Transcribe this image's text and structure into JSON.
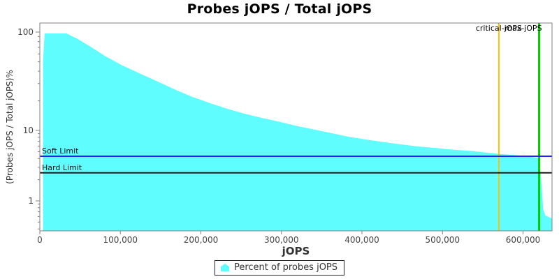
{
  "chart_data": {
    "type": "area",
    "title": "Probes jOPS / Total jOPS",
    "xlabel": "jOPS",
    "ylabel": "(Probes jOPS / Total jOPS)%",
    "x_ticks": [
      0,
      100000,
      200000,
      300000,
      400000,
      500000,
      600000
    ],
    "y_ticks": [
      100,
      10,
      1
    ],
    "y_scale": "log",
    "xlim": [
      0,
      636000
    ],
    "ylim": [
      0.4,
      120
    ],
    "grid": "off",
    "series": [
      {
        "name": "Percent of probes jOPS",
        "color": "#5FFDFD",
        "points": [
          [
            4000,
            50
          ],
          [
            6000,
            97
          ],
          [
            33000,
            97
          ],
          [
            46000,
            86
          ],
          [
            63000,
            71
          ],
          [
            81000,
            57
          ],
          [
            102000,
            46
          ],
          [
            124000,
            38
          ],
          [
            146000,
            31.5
          ],
          [
            168000,
            26
          ],
          [
            189000,
            22
          ],
          [
            211000,
            19
          ],
          [
            233000,
            16.6
          ],
          [
            254000,
            14.8
          ],
          [
            276000,
            13.4
          ],
          [
            298000,
            12.2
          ],
          [
            319000,
            11.1
          ],
          [
            341000,
            10.2
          ],
          [
            363000,
            9.1
          ],
          [
            384000,
            8.1
          ],
          [
            406000,
            7.4
          ],
          [
            428000,
            6.8
          ],
          [
            450000,
            6.3
          ],
          [
            471000,
            5.9
          ],
          [
            493000,
            5.6
          ],
          [
            515000,
            5.3
          ],
          [
            536000,
            5.1
          ],
          [
            558000,
            4.8
          ],
          [
            575000,
            4.6
          ],
          [
            597000,
            4.4
          ],
          [
            620000,
            4.05
          ],
          [
            622000,
            2.4
          ],
          [
            624000,
            1.2
          ],
          [
            625000,
            0.76
          ],
          [
            628000,
            0.62
          ],
          [
            636000,
            0.56
          ]
        ]
      }
    ],
    "reference_lines": [
      {
        "id": "soft_limit",
        "label": "Soft Limit",
        "value": 4.3,
        "color": "#2222EE"
      },
      {
        "id": "hard_limit",
        "label": "Hard Limit",
        "value": 2.5,
        "color": "#1A1A1A"
      }
    ],
    "vertical_markers": [
      {
        "id": "critical_jops",
        "label": "critical-jOPS",
        "value": 570000,
        "color": "#FFC000"
      },
      {
        "id": "max_jops",
        "label": "max-jOPS",
        "value": 620000,
        "color": "#00CC00"
      }
    ],
    "legend": {
      "position": "bottom",
      "entries": [
        "Percent of probes jOPS"
      ]
    },
    "axis_color": "#808080",
    "tick_label_color": "#444444"
  }
}
